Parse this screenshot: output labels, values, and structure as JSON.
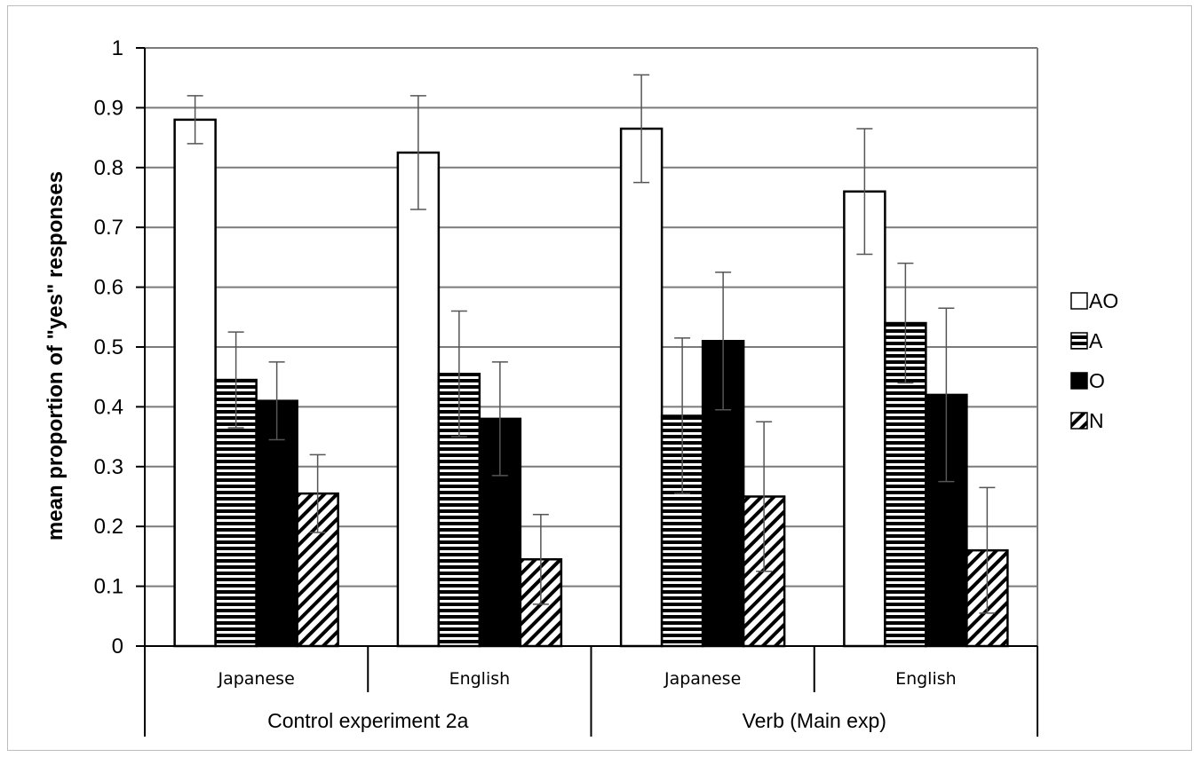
{
  "chart_data": {
    "type": "bar",
    "title": "",
    "ylabel": "mean proportion of \"yes\" responses",
    "xlabel": "",
    "ylim": [
      0,
      1
    ],
    "yticks": [
      "0",
      "0.1",
      "0.2",
      "0.3",
      "0.4",
      "0.5",
      "0.6",
      "0.7",
      "0.8",
      "0.9",
      "1"
    ],
    "grid": "horizontal",
    "legend_position": "right",
    "categories": [
      "Japanese",
      "English",
      "Japanese",
      "English"
    ],
    "groups": [
      {
        "label": "Control experiment 2a",
        "categories": [
          "Japanese",
          "English"
        ]
      },
      {
        "label": "Verb (Main exp)",
        "categories": [
          "Japanese",
          "English"
        ]
      }
    ],
    "series": [
      {
        "name": "AO",
        "pattern": "white",
        "values": [
          0.88,
          0.825,
          0.865,
          0.76
        ],
        "errors": [
          0.04,
          0.095,
          0.09,
          0.105
        ]
      },
      {
        "name": "A",
        "pattern": "horizontal-stripes",
        "values": [
          0.445,
          0.455,
          0.385,
          0.54
        ],
        "errors": [
          0.08,
          0.105,
          0.13,
          0.1
        ]
      },
      {
        "name": "O",
        "pattern": "black",
        "values": [
          0.41,
          0.38,
          0.51,
          0.42
        ],
        "errors": [
          0.065,
          0.095,
          0.115,
          0.145
        ]
      },
      {
        "name": "N",
        "pattern": "diagonal-hatch",
        "values": [
          0.255,
          0.145,
          0.25,
          0.16
        ],
        "errors": [
          0.065,
          0.075,
          0.125,
          0.105
        ]
      }
    ],
    "colors": {
      "bar_stroke": "#000000",
      "grid": "#7a7a7a",
      "black_fill": "#000000",
      "white_fill": "#ffffff"
    }
  }
}
